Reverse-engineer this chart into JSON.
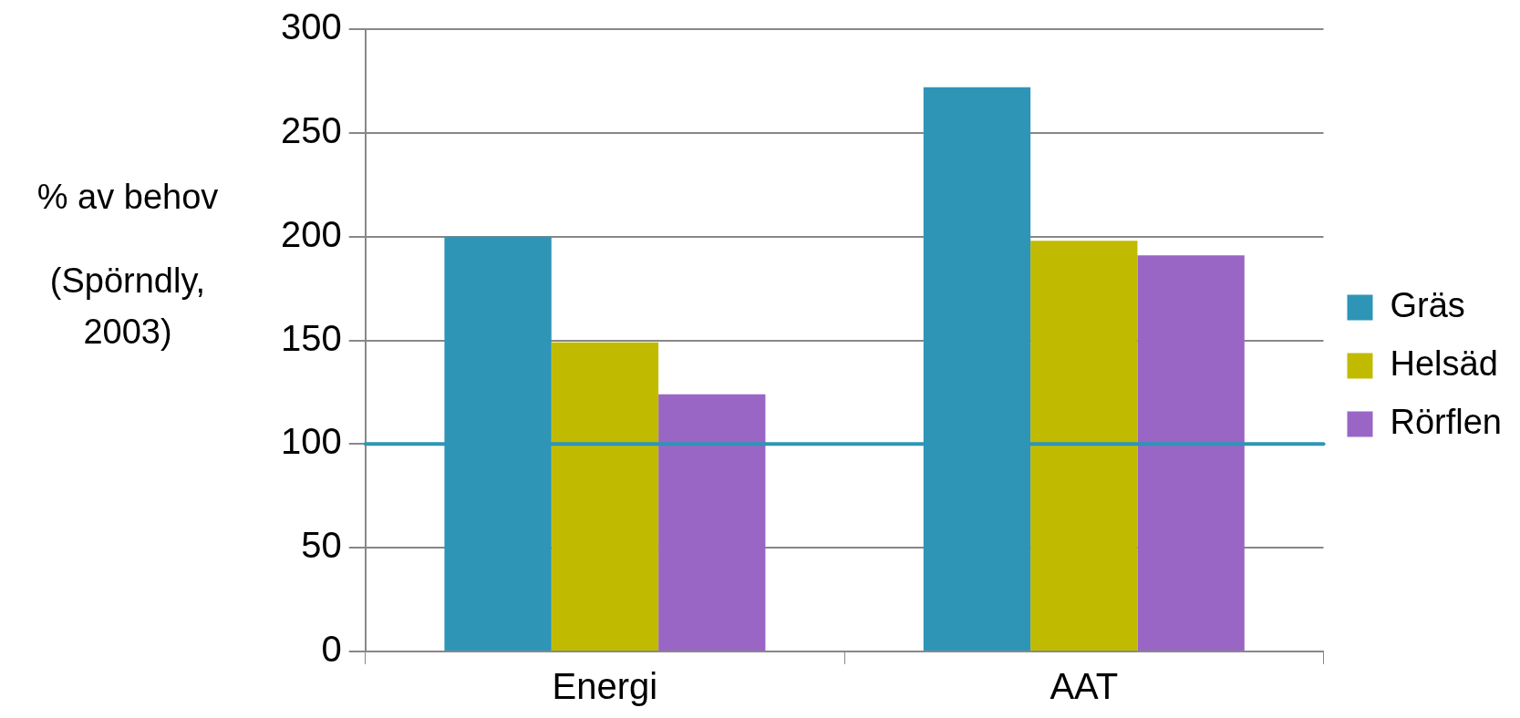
{
  "chart_data": {
    "type": "bar",
    "ylabel": "% av behov",
    "annotations": [
      "(Spörndly, 2003)"
    ],
    "categories": [
      "Energi",
      "AAT"
    ],
    "series": [
      {
        "name": "Gräs",
        "color": "#2e95b7",
        "values": [
          200,
          272
        ]
      },
      {
        "name": "Helsäd",
        "color": "#c0bb00",
        "values": [
          149,
          198
        ]
      },
      {
        "name": "Rörflen",
        "color": "#9966c5",
        "values": [
          124,
          191
        ]
      }
    ],
    "ylim": [
      0,
      300
    ],
    "yticks": [
      0,
      50,
      100,
      150,
      200,
      250,
      300
    ],
    "ref_lines": [
      {
        "axis": "y",
        "value": 100,
        "color": "#2e95b7"
      }
    ],
    "grid": "y",
    "legend": "right"
  }
}
